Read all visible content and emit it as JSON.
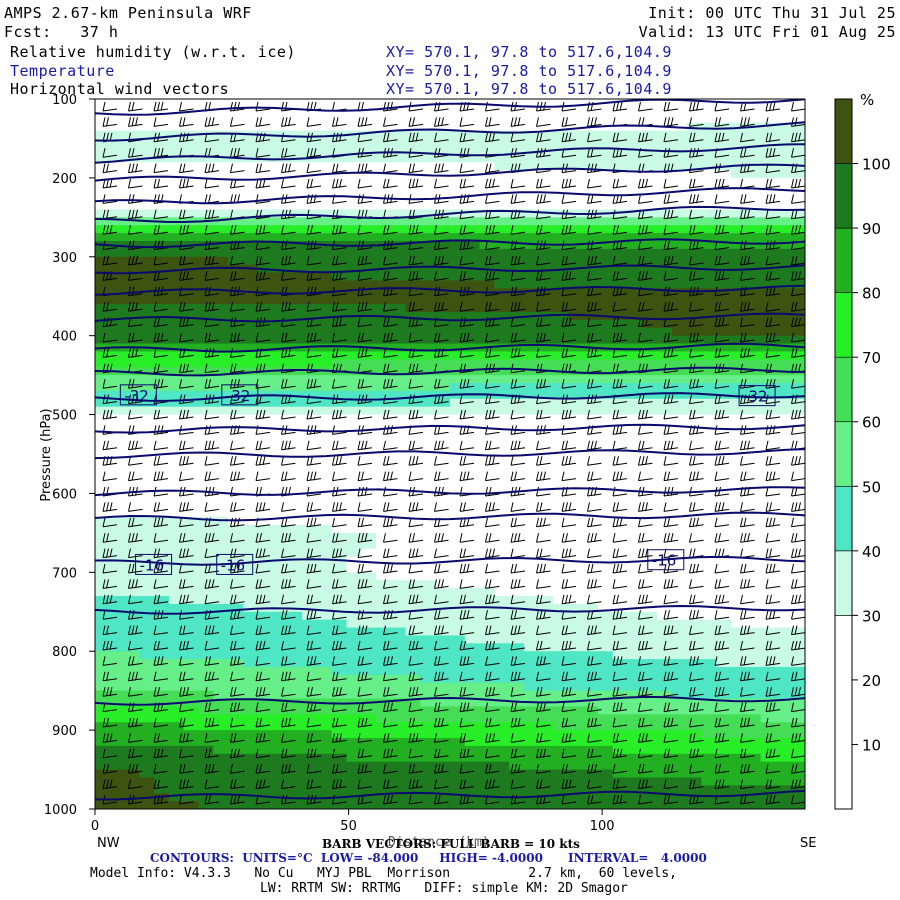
{
  "header": {
    "model": "AMPS 2.67-km Peninsula WRF",
    "init": "Init: 00 UTC Thu 31 Jul 25",
    "fcst": "Fcst:   37 h",
    "valid": "Valid: 13 UTC Fri 01 Aug 25",
    "field1": "Relative humidity (w.r.t. ice)",
    "field2": "Temperature",
    "field3": "Horizontal wind vectors",
    "xy1": "XY= 570.1, 97.8 to 517.6,104.9",
    "xy2": "XY= 570.1, 97.8 to 517.6,104.9",
    "xy3": "XY= 570.1, 97.8 to 517.6,104.9"
  },
  "chart_data": {
    "type": "heatmap",
    "title": "Relative humidity (w.r.t. ice)",
    "xlabel": "Distance (km)",
    "ylabel": "Pressure (hPa)",
    "xlim": [
      0,
      140
    ],
    "ylim": [
      1000,
      100
    ],
    "x_ticks": [
      0,
      50,
      100
    ],
    "y_ticks": [
      100,
      200,
      300,
      400,
      500,
      600,
      700,
      800,
      900,
      1000
    ],
    "x_end_labels": [
      "NW",
      "SE"
    ],
    "colorbar": {
      "unit": "%",
      "ticks": [
        10,
        20,
        30,
        40,
        50,
        60,
        70,
        80,
        90,
        100
      ],
      "bins": [
        {
          "range": [
            0,
            30
          ],
          "color": "#ffffff"
        },
        {
          "range": [
            30,
            40
          ],
          "color": "#c8fae6"
        },
        {
          "range": [
            40,
            50
          ],
          "color": "#4ee6c4"
        },
        {
          "range": [
            50,
            60
          ],
          "color": "#66ee88"
        },
        {
          "range": [
            60,
            70
          ],
          "color": "#44dd55"
        },
        {
          "range": [
            70,
            80
          ],
          "color": "#28ee28"
        },
        {
          "range": [
            80,
            90
          ],
          "color": "#22b022"
        },
        {
          "range": [
            90,
            100
          ],
          "color": "#1e7a1e"
        },
        {
          "range": [
            100,
            110
          ],
          "color": "#3d5410"
        }
      ]
    },
    "rh_profile": {
      "pressure": [
        100,
        150,
        200,
        230,
        250,
        270,
        300,
        350,
        400,
        430,
        460,
        490,
        520,
        600,
        650,
        700,
        750,
        800,
        850,
        900,
        950,
        1000
      ],
      "rh_nw": [
        10,
        35,
        25,
        10,
        45,
        85,
        101,
        101,
        95,
        75,
        55,
        40,
        10,
        20,
        40,
        35,
        45,
        50,
        60,
        85,
        101,
        101
      ],
      "rh_se": [
        20,
        35,
        30,
        15,
        40,
        80,
        95,
        101,
        101,
        70,
        50,
        35,
        10,
        10,
        15,
        20,
        25,
        35,
        45,
        65,
        85,
        95
      ]
    },
    "temperature_contours": {
      "units": "°C",
      "low": -84.0,
      "high": -4.0,
      "interval": 4.0,
      "labels": [
        "-32",
        "-32",
        "-32",
        "-16",
        "-16",
        "-16"
      ]
    },
    "wind_barb_note": "BARB VECTORS: FULL BARB = 10 kts"
  },
  "footer": {
    "barb": "BARB VECTORS: FULL BARB = 10 kts",
    "distance": "Distance (km)",
    "contours": "CONTOURS:  UNITS=°C  LOW= -84.000     HIGH= -4.0000      INTERVAL=   4.0000",
    "model_info": "Model Info: V4.3.3   No Cu   MYJ PBL  Morrison          2.7 km,  60 levels,",
    "physics": "LW: RRTM SW: RRTMG   DIFF: simple KM: 2D Smagor"
  }
}
